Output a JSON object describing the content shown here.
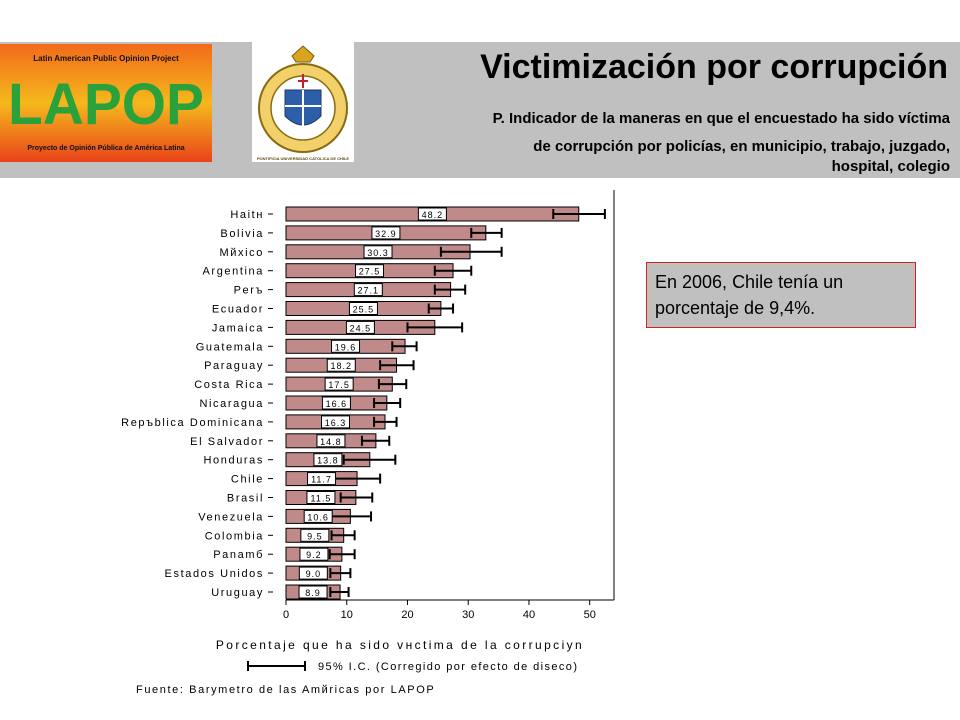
{
  "header": {
    "title": "Victimización por corrupción",
    "subtitle_1": "P. Indicador de la maneras en que  el encuestado ha sido víctima",
    "subtitle_2": "de corrupción por policías, en municipio, trabajo, juzgado,",
    "subtitle_3": "hospital, colegio"
  },
  "logo": {
    "top_text": "Latin American Public Opinion Project",
    "name": "LAPOP",
    "bottom_text": "Proyecto de Opinión Pública de América Latina"
  },
  "seal": {
    "ring_text": "PONTIFICIA UNIVERSIDAD CATOLICA DE CHILE"
  },
  "note": {
    "line1": "En 2006, Chile tenía un",
    "line2": "porcentaje de 9,4%."
  },
  "colors": {
    "bar": "#c08a8a",
    "header_bg": "#c0c0c0",
    "note_border": "#d32020"
  },
  "chart_data": {
    "type": "bar",
    "orientation": "horizontal",
    "categories": [
      "Haitн",
      "Bolivia",
      "Mйxico",
      "Argentina",
      "Perъ",
      "Ecuador",
      "Jamaica",
      "Guatemala",
      "Paraguay",
      "Costa Rica",
      "Nicaragua",
      "Repъblica Dominicana",
      "El Salvador",
      "Honduras",
      "Chile",
      "Brasil",
      "Venezuela",
      "Colombia",
      "Panamб",
      "Estados Unidos",
      "Uruguay"
    ],
    "values": [
      48.2,
      32.9,
      30.3,
      27.5,
      27.1,
      25.5,
      24.5,
      19.6,
      18.2,
      17.5,
      16.6,
      16.3,
      14.8,
      13.8,
      11.7,
      11.5,
      10.6,
      9.5,
      9.2,
      9.0,
      8.9
    ],
    "value_labels": [
      "48.2",
      "32.9",
      "30.3",
      "27.5",
      "27.1",
      "25.5",
      "24.5",
      "19.6",
      "18.2",
      "17.5",
      "16.6",
      "16.3",
      "14.8",
      "13.8",
      "11.7",
      "11.5",
      "10.6",
      "9.5",
      "9.2",
      "9.0",
      "8.9"
    ],
    "ci_low": [
      44.0,
      30.5,
      25.5,
      24.5,
      24.5,
      23.5,
      20.0,
      17.5,
      15.5,
      15.3,
      14.5,
      14.5,
      12.5,
      9.5,
      8.0,
      9.0,
      7.5,
      7.5,
      7.2,
      7.3,
      7.3
    ],
    "ci_high": [
      52.5,
      35.5,
      35.5,
      30.5,
      29.5,
      27.5,
      29.0,
      21.5,
      21.0,
      19.8,
      18.8,
      18.2,
      17.0,
      18.0,
      15.5,
      14.2,
      14.0,
      11.3,
      11.3,
      10.6,
      10.3
    ],
    "xlim": [
      0,
      54
    ],
    "xticks": [
      0,
      10,
      20,
      30,
      40,
      50
    ],
    "xlabel": "Porcentaje que ha sido vнctima de la corrupciуn",
    "ci_legend": "95% I.C. (Corregido por efecto de diseсo)",
    "source": "Fuente: Barуmetro de las Amйricas por LAPOP"
  }
}
